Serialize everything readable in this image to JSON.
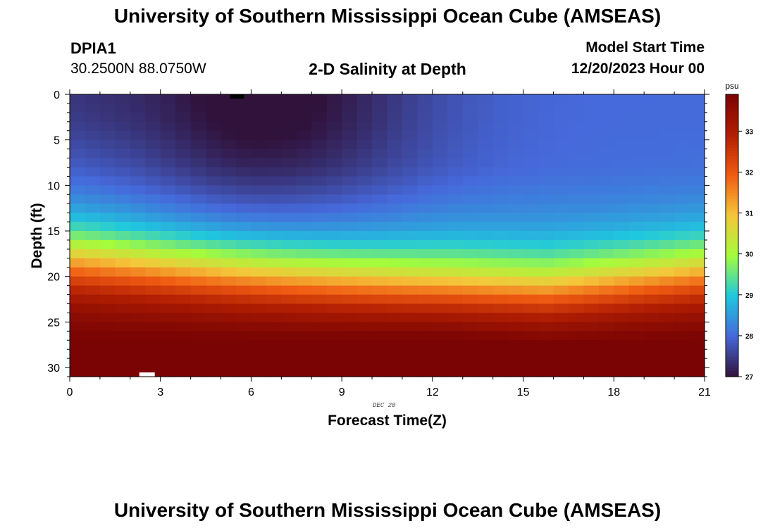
{
  "header": {
    "title": "University of Southern Mississippi Ocean Cube (AMSEAS)",
    "station_id": "DPIA1",
    "coords": "30.2500N  88.0750W",
    "subtitle": "2-D Salinity at Depth",
    "model_start_label": "Model Start Time",
    "model_start_value": "12/20/2023 Hour 00"
  },
  "footer": {
    "title": "University of Southern Mississippi Ocean Cube (AMSEAS)"
  },
  "chart_data": {
    "type": "heatmap",
    "title": "2-D Salinity at Depth",
    "xlabel": "Forecast Time(Z)",
    "ylabel": "Depth (ft)",
    "x_annotation": "DEC 20",
    "x_ticks": [
      0,
      3,
      6,
      9,
      12,
      15,
      18,
      21
    ],
    "y_ticks": [
      0,
      5,
      10,
      15,
      20,
      25,
      30
    ],
    "xlim": [
      0,
      21
    ],
    "ylim": [
      0,
      31
    ],
    "colorbar": {
      "unit": "psu",
      "ticks": [
        27,
        28,
        29,
        30,
        31,
        32,
        33
      ],
      "range": [
        27,
        33.9
      ]
    },
    "grid": {
      "x_columns": 42,
      "y_rows": 31
    },
    "salinity_model": {
      "halocline_depth_at_hour_0": 18.0,
      "halocline_depth_mid_period": 21.5,
      "halocline_depth_at_hour_21": 19.5,
      "surface_fresh_plume_center_hour": 6.3,
      "surface_fresh_plume_depth_ft": 14,
      "fresh_min_psu": 27.0,
      "background_upper_psu": 28.0,
      "deep_max_psu": 33.8
    },
    "colors": {
      "scale": [
        "#30123b",
        "#4669db",
        "#1fc8de",
        "#a4fc3c",
        "#f5c63a",
        "#f05b12",
        "#b21e02",
        "#7a0403"
      ]
    }
  }
}
